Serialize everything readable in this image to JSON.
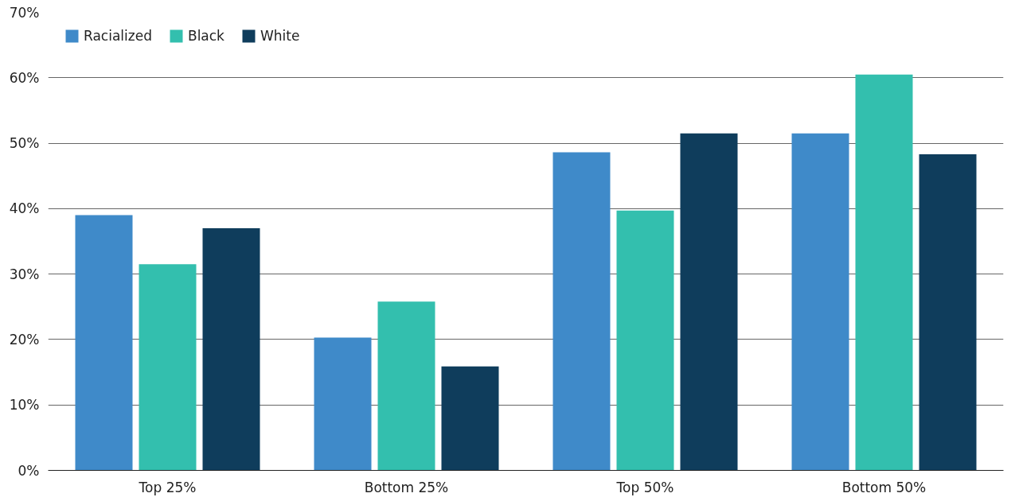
{
  "chart_data": {
    "type": "bar",
    "categories": [
      "Top 25%",
      "Bottom 25%",
      "Top 50%",
      "Bottom 50%"
    ],
    "series": [
      {
        "name": "Racialized",
        "color": "#3f8ac9",
        "values": [
          39.0,
          20.3,
          48.6,
          51.5
        ]
      },
      {
        "name": "Black",
        "color": "#33bfae",
        "values": [
          31.5,
          25.8,
          39.7,
          60.5
        ]
      },
      {
        "name": "White",
        "color": "#0f3d5c",
        "values": [
          37.0,
          15.9,
          51.5,
          48.3
        ]
      }
    ],
    "ylim": [
      0,
      70
    ],
    "yticks": [
      {
        "value": 0,
        "label": "0%"
      },
      {
        "value": 10,
        "label": "10%"
      },
      {
        "value": 20,
        "label": "20%"
      },
      {
        "value": 30,
        "label": "30%"
      },
      {
        "value": 40,
        "label": "40%"
      },
      {
        "value": 50,
        "label": "50%"
      },
      {
        "value": 60,
        "label": "60%"
      },
      {
        "value": 70,
        "label": "70%"
      }
    ],
    "grid": "y",
    "legend": "top left"
  }
}
